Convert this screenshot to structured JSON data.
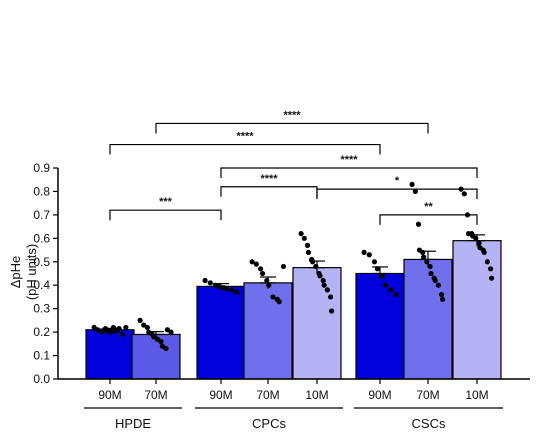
{
  "chart_data": {
    "type": "bar",
    "ylabel_line1": "ΔpHe",
    "ylabel_line2": "(pH units)",
    "ylim": [
      0,
      0.9
    ],
    "yticks": [
      "0.0",
      "0.1",
      "0.2",
      "0.3",
      "0.4",
      "0.5",
      "0.6",
      "0.7",
      "0.8",
      "0.9"
    ],
    "grid": false,
    "groups": [
      {
        "label": "HPDE",
        "bars": [
          0,
          1
        ]
      },
      {
        "label": "CPCs",
        "bars": [
          2,
          3,
          4
        ]
      },
      {
        "label": "CSCs",
        "bars": [
          5,
          6,
          7
        ]
      }
    ],
    "bars": [
      {
        "label": "90M",
        "value": 0.21,
        "sem": 0.006,
        "color": "#0000dd",
        "points": [
          0.22,
          0.21,
          0.205,
          0.2,
          0.215,
          0.21,
          0.2,
          0.22,
          0.205,
          0.21,
          0.215,
          0.19,
          0.22
        ]
      },
      {
        "label": "70M",
        "value": 0.19,
        "sem": 0.012,
        "color": "#5a5ae6",
        "points": [
          0.25,
          0.23,
          0.22,
          0.2,
          0.19,
          0.18,
          0.17,
          0.16,
          0.14,
          0.13,
          0.21,
          0.2
        ]
      },
      {
        "label": "90M",
        "value": 0.395,
        "sem": 0.012,
        "color": "#0000dd",
        "points": [
          0.42,
          0.41,
          0.4,
          0.395,
          0.39,
          0.385,
          0.38,
          0.37
        ]
      },
      {
        "label": "70M",
        "value": 0.41,
        "sem": 0.025,
        "color": "#7070ec",
        "points": [
          0.5,
          0.49,
          0.47,
          0.45,
          0.42,
          0.4,
          0.35,
          0.34,
          0.33,
          0.48
        ]
      },
      {
        "label": "10M",
        "value": 0.475,
        "sem": 0.028,
        "color": "#b4b4f4",
        "points": [
          0.62,
          0.6,
          0.57,
          0.54,
          0.51,
          0.5,
          0.48,
          0.45,
          0.44,
          0.42,
          0.4,
          0.38,
          0.35,
          0.29
        ]
      },
      {
        "label": "90M",
        "value": 0.45,
        "sem": 0.028,
        "color": "#0000dd",
        "points": [
          0.54,
          0.53,
          0.5,
          0.47,
          0.44,
          0.4,
          0.38,
          0.36
        ]
      },
      {
        "label": "70M",
        "value": 0.51,
        "sem": 0.035,
        "color": "#7070ec",
        "points": [
          0.83,
          0.8,
          0.66,
          0.55,
          0.54,
          0.52,
          0.5,
          0.48,
          0.45,
          0.43,
          0.42,
          0.4,
          0.36,
          0.34
        ]
      },
      {
        "label": "10M",
        "value": 0.59,
        "sem": 0.025,
        "color": "#b4b4f4",
        "points": [
          0.81,
          0.79,
          0.7,
          0.62,
          0.62,
          0.61,
          0.6,
          0.58,
          0.56,
          0.55,
          0.54,
          0.5,
          0.47,
          0.43
        ]
      }
    ],
    "significance": [
      {
        "from": 0,
        "to": 2,
        "level": 0.72,
        "label": "***"
      },
      {
        "from": 0,
        "to": 5,
        "level": 1.0,
        "label": "****"
      },
      {
        "from": 1,
        "to": 6,
        "level": 1.09,
        "label": "****"
      },
      {
        "from": 2,
        "to": 7,
        "level": 0.9,
        "label": "****"
      },
      {
        "from": 2,
        "to": 4,
        "level": 0.82,
        "label": "****"
      },
      {
        "from": 4,
        "to": 7,
        "level": 0.81,
        "label": "*"
      },
      {
        "from": 5,
        "to": 7,
        "level": 0.7,
        "label": "**"
      }
    ]
  }
}
